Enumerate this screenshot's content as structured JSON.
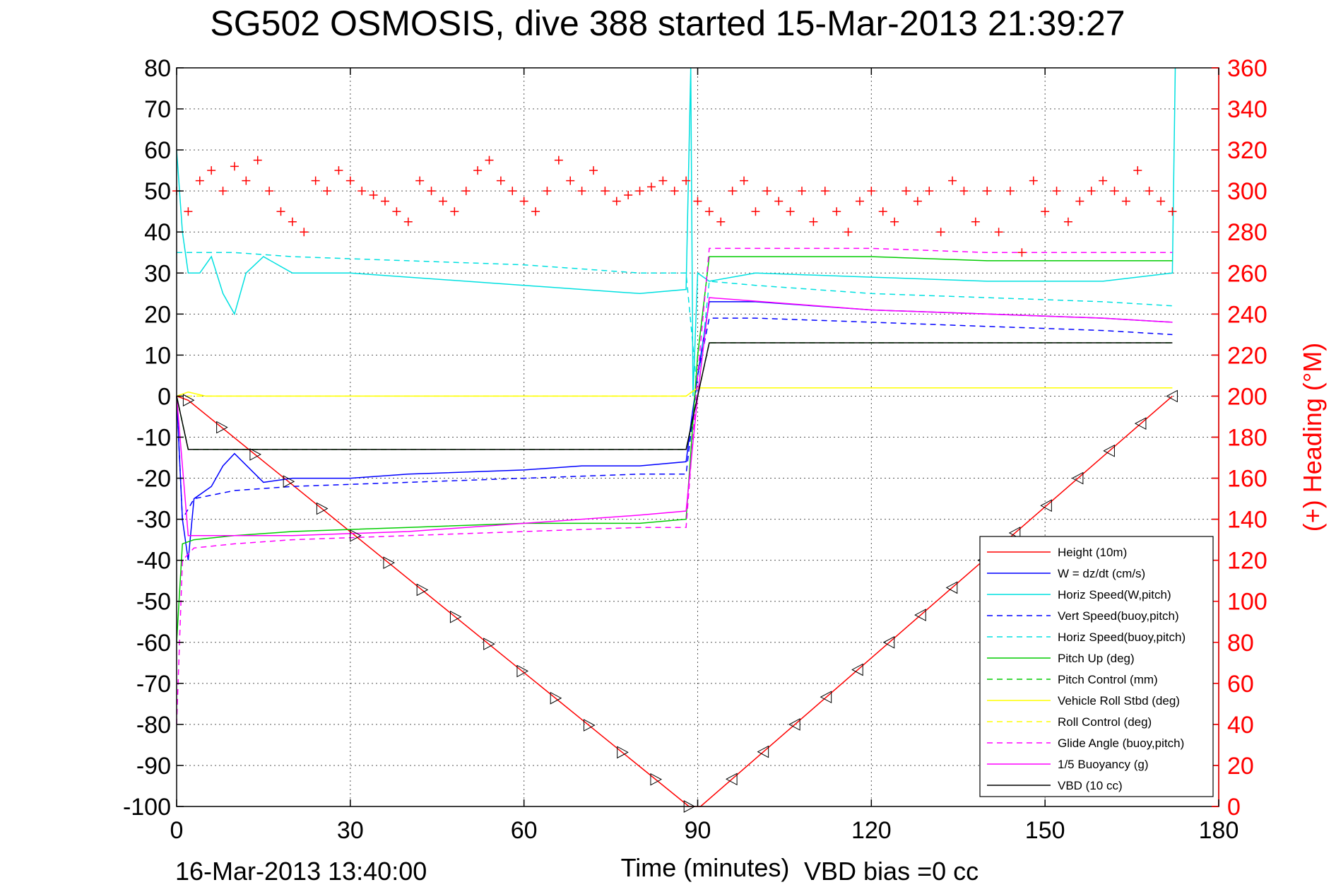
{
  "chart_data": {
    "type": "line",
    "title": "SG502 OSMOSIS, dive 388 started 15-Mar-2013 21:39:27",
    "xlabel": "Time (minutes)",
    "ylabel": "",
    "y2label": "(+) Heading (°M)",
    "xlim": [
      0,
      180
    ],
    "ylim": [
      -100,
      80
    ],
    "y2lim": [
      0,
      360
    ],
    "x_ticks": [
      0,
      30,
      60,
      90,
      120,
      150,
      180
    ],
    "y_ticks": [
      -100,
      -90,
      -80,
      -70,
      -60,
      -50,
      -40,
      -30,
      -20,
      -10,
      0,
      10,
      20,
      30,
      40,
      50,
      60,
      70,
      80
    ],
    "y2_ticks": [
      0,
      20,
      40,
      60,
      80,
      100,
      120,
      140,
      160,
      180,
      200,
      220,
      240,
      260,
      280,
      300,
      320,
      340,
      360
    ],
    "grid": true,
    "legend_position": "bottom-right",
    "footer_left": "16-Mar-2013 13:40:00",
    "footer_right": "VBD bias =0 cc",
    "series": [
      {
        "name": "Height (10m)",
        "color": "#ff0000",
        "dash": "solid",
        "x": [
          0,
          2,
          88.5,
          89.5,
          90.5,
          172
        ],
        "y": [
          0,
          -1,
          -100,
          -100,
          -100,
          0
        ]
      },
      {
        "name": "W = dz/dt (cm/s)",
        "color": "#0000ff",
        "dash": "solid",
        "x": [
          0,
          1,
          2,
          3,
          6,
          8,
          10,
          15,
          20,
          30,
          40,
          60,
          70,
          80,
          88,
          89,
          90,
          92,
          100,
          120,
          140,
          160,
          172
        ],
        "y": [
          0,
          -30,
          -40,
          -25,
          -22,
          -17,
          -14,
          -21,
          -20,
          -20,
          -19,
          -18,
          -17,
          -17,
          -16,
          -5,
          5,
          23,
          23,
          21,
          20,
          19,
          18
        ]
      },
      {
        "name": "Horiz Speed(W,pitch)",
        "color": "#00e0e0",
        "dash": "solid",
        "x": [
          0,
          1,
          2,
          4,
          6,
          8,
          10,
          12,
          15,
          20,
          30,
          40,
          60,
          70,
          80,
          88,
          88.8,
          89.2,
          90,
          92,
          100,
          120,
          140,
          160,
          172,
          172.5
        ],
        "y": [
          60,
          40,
          30,
          30,
          34,
          25,
          20,
          30,
          34,
          30,
          30,
          29,
          27,
          26,
          25,
          26,
          80,
          0,
          30,
          28,
          30,
          29,
          28,
          28,
          30,
          80
        ]
      },
      {
        "name": "Vert Speed(buoy,pitch)",
        "color": "#0000ff",
        "dash": "dash",
        "x": [
          0,
          1,
          3,
          10,
          20,
          40,
          60,
          80,
          88,
          90,
          92,
          100,
          120,
          140,
          160,
          172
        ],
        "y": [
          0,
          -30,
          -25,
          -23,
          -22,
          -21,
          -20,
          -19,
          -19,
          5,
          19,
          19,
          18,
          17,
          16,
          15
        ]
      },
      {
        "name": "Horiz Speed(buoy,pitch)",
        "color": "#00e0e0",
        "dash": "dash",
        "x": [
          0,
          2,
          10,
          20,
          40,
          60,
          80,
          88,
          90,
          92,
          100,
          120,
          140,
          160,
          172
        ],
        "y": [
          35,
          35,
          35,
          34,
          33,
          32,
          30,
          30,
          0,
          28,
          27,
          25,
          24,
          23,
          22
        ]
      },
      {
        "name": "Pitch Up (deg)",
        "color": "#00cc00",
        "dash": "solid",
        "x": [
          0,
          1,
          3,
          10,
          20,
          40,
          60,
          80,
          88,
          90,
          92,
          100,
          120,
          140,
          160,
          172
        ],
        "y": [
          -60,
          -36,
          -35,
          -34,
          -33,
          -32,
          -31,
          -31,
          -30,
          10,
          34,
          34,
          34,
          33,
          33,
          33
        ]
      },
      {
        "name": "Pitch Control (mm)",
        "color": "#00cc00",
        "dash": "dash",
        "x": [
          0,
          2,
          88,
          90,
          92,
          172
        ],
        "y": [
          0,
          -13,
          -13,
          0,
          13,
          13
        ]
      },
      {
        "name": "Vehicle Roll Stbd (deg)",
        "color": "#ffff00",
        "dash": "solid",
        "x": [
          0,
          2,
          5,
          20,
          40,
          60,
          80,
          88,
          90,
          100,
          120,
          140,
          160,
          172
        ],
        "y": [
          0,
          1,
          0,
          0,
          0,
          0,
          0,
          0,
          2,
          2,
          2,
          2,
          2,
          2
        ]
      },
      {
        "name": "Roll Control (deg)",
        "color": "#ffff00",
        "dash": "dash",
        "x": [
          0,
          2,
          88,
          90,
          172
        ],
        "y": [
          0,
          0,
          0,
          2,
          2
        ]
      },
      {
        "name": "Glide Angle (buoy,pitch)",
        "color": "#ff00ff",
        "dash": "dash",
        "x": [
          0,
          1,
          3,
          10,
          20,
          40,
          60,
          80,
          88,
          90,
          92,
          100,
          120,
          140,
          160,
          172
        ],
        "y": [
          -80,
          -40,
          -37,
          -36,
          -35,
          -34,
          -33,
          -32,
          -32,
          5,
          36,
          36,
          36,
          35,
          35,
          35
        ]
      },
      {
        "name": "1/5 Buoyancy (g)",
        "color": "#ff00ff",
        "dash": "solid",
        "x": [
          0,
          2,
          10,
          20,
          40,
          60,
          80,
          88,
          90,
          92,
          120,
          140,
          160,
          172
        ],
        "y": [
          0,
          -34,
          -34,
          -34,
          -33,
          -31,
          -29,
          -28,
          0,
          24,
          21,
          20,
          19,
          18
        ]
      },
      {
        "name": "VBD (10 cc)",
        "color": "#000000",
        "dash": "solid",
        "x": [
          0,
          2,
          88,
          90,
          92,
          172
        ],
        "y": [
          0,
          -13,
          -13,
          0,
          13,
          13
        ]
      },
      {
        "name": "Heading",
        "color": "#ff0000",
        "dash": "none",
        "marker": "+",
        "axis": "right",
        "x": [
          0,
          2,
          4,
          6,
          8,
          10,
          12,
          14,
          16,
          18,
          20,
          22,
          24,
          26,
          28,
          30,
          32,
          34,
          36,
          38,
          40,
          42,
          44,
          46,
          48,
          50,
          52,
          54,
          56,
          58,
          60,
          62,
          64,
          66,
          68,
          70,
          72,
          74,
          76,
          78,
          80,
          82,
          84,
          86,
          88,
          90,
          92,
          94,
          96,
          98,
          100,
          102,
          104,
          106,
          108,
          110,
          112,
          114,
          116,
          118,
          120,
          122,
          124,
          126,
          128,
          130,
          132,
          134,
          136,
          138,
          140,
          142,
          144,
          146,
          148,
          150,
          152,
          154,
          156,
          158,
          160,
          162,
          164,
          166,
          168,
          170,
          172
        ],
        "y": [
          300,
          290,
          305,
          310,
          300,
          312,
          305,
          315,
          300,
          290,
          285,
          280,
          305,
          300,
          310,
          305,
          300,
          298,
          295,
          290,
          285,
          305,
          300,
          295,
          290,
          300,
          310,
          315,
          305,
          300,
          295,
          290,
          300,
          315,
          305,
          300,
          310,
          300,
          295,
          298,
          300,
          302,
          305,
          300,
          305,
          295,
          290,
          285,
          300,
          305,
          290,
          300,
          295,
          290,
          300,
          285,
          300,
          290,
          280,
          295,
          300,
          290,
          285,
          300,
          295,
          300,
          280,
          305,
          300,
          285,
          300,
          280,
          300,
          270,
          305,
          290,
          300,
          285,
          295,
          300,
          305,
          300,
          295,
          310,
          300,
          295,
          290
        ]
      }
    ]
  }
}
